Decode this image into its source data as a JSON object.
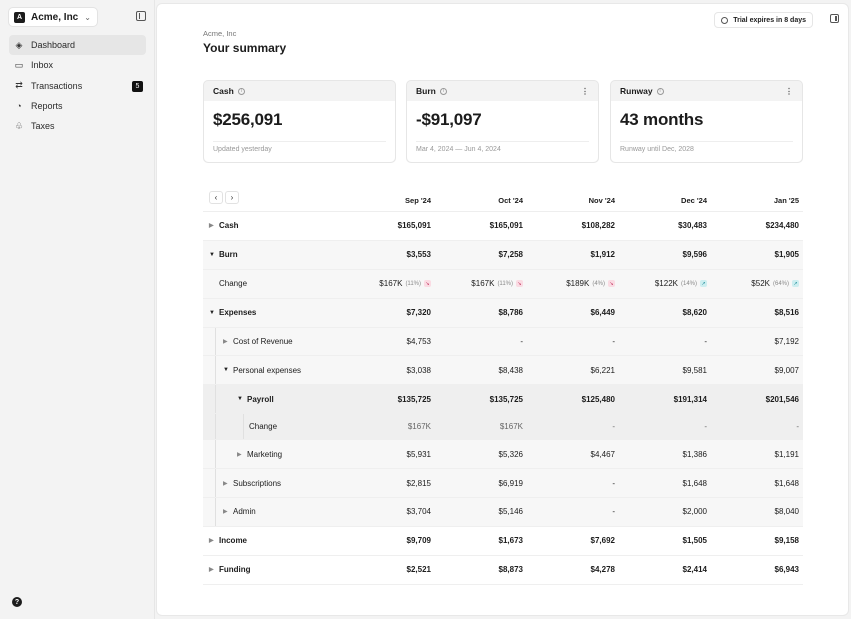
{
  "org": {
    "logo": "A",
    "name": "Acme, Inc"
  },
  "nav": [
    {
      "label": "Dashboard",
      "icon": "◈",
      "active": true
    },
    {
      "label": "Inbox",
      "icon": "▭"
    },
    {
      "label": "Transactions",
      "icon": "⇄",
      "badge": "5"
    },
    {
      "label": "Reports",
      "icon": "◔"
    },
    {
      "label": "Taxes",
      "icon": "♧"
    }
  ],
  "help": "?",
  "header": {
    "trial": "Trial expires in 8 days",
    "breadcrumb": "Acme, Inc",
    "title": "Your summary"
  },
  "cards": [
    {
      "label": "Cash",
      "value": "$256,091",
      "foot": "Updated yesterday",
      "menu": false
    },
    {
      "label": "Burn",
      "value": "-$91,097",
      "foot": "Mar 4, 2024 — Jun 4, 2024",
      "menu": true
    },
    {
      "label": "Runway",
      "value": "43 months",
      "foot": "Runway until Dec, 2028",
      "menu": true
    }
  ],
  "table": {
    "pager": {
      "prev": "‹",
      "next": "›"
    },
    "columns": [
      "Sep '24",
      "Oct '24",
      "Nov '24",
      "Dec '24",
      "Jan '25"
    ],
    "rows": [
      {
        "label": "Cash",
        "level": 0,
        "caret": "right",
        "bold": true,
        "values": [
          "$165,091",
          "$165,091",
          "$108,282",
          "$30,483",
          "$234,480"
        ]
      },
      {
        "label": "Burn",
        "level": 0,
        "caret": "down",
        "bold": true,
        "bg": 1,
        "values": [
          "$3,553",
          "$7,258",
          "$1,912",
          "$9,596",
          "$1,905"
        ]
      },
      {
        "label": "Change",
        "level": 0,
        "caret": "none",
        "bg": 1,
        "change": true,
        "values": [
          "$167K",
          "$167K",
          "$189K",
          "$122K",
          "$52K"
        ],
        "pct": [
          "(11%)",
          "(11%)",
          "(4%)",
          "(14%)",
          "(64%)"
        ],
        "trend": [
          "up",
          "up",
          "up",
          "down",
          "down"
        ]
      },
      {
        "label": "Expenses",
        "level": 0,
        "caret": "down",
        "bold": true,
        "bg": 1,
        "values": [
          "$7,320",
          "$8,786",
          "$6,449",
          "$8,620",
          "$8,516"
        ]
      },
      {
        "label": "Cost of Revenue",
        "level": 1,
        "caret": "right",
        "bg": 1,
        "values": [
          "$4,753",
          "-",
          "-",
          "-",
          "$7,192"
        ]
      },
      {
        "label": "Personal expenses",
        "level": 1,
        "caret": "down",
        "bg": 1,
        "values": [
          "$3,038",
          "$8,438",
          "$6,221",
          "$9,581",
          "$9,007"
        ]
      },
      {
        "label": "Payroll",
        "level": 2,
        "caret": "down",
        "bold": true,
        "bg": 2,
        "values": [
          "$135,725",
          "$135,725",
          "$125,480",
          "$191,314",
          "$201,546"
        ]
      },
      {
        "label": "Change",
        "level": 3,
        "caret": "none",
        "bg": 2,
        "muted": true,
        "short": true,
        "values": [
          "$167K",
          "$167K",
          "-",
          "-",
          "-"
        ]
      },
      {
        "label": "Marketing",
        "level": 2,
        "caret": "right",
        "bg": 1,
        "values": [
          "$5,931",
          "$5,326",
          "$4,467",
          "$1,386",
          "$1,191"
        ]
      },
      {
        "label": "Subscriptions",
        "level": 1,
        "caret": "right",
        "bg": 1,
        "values": [
          "$2,815",
          "$6,919",
          "-",
          "$1,648",
          "$1,648"
        ]
      },
      {
        "label": "Admin",
        "level": 1,
        "caret": "right",
        "bg": 1,
        "values": [
          "$3,704",
          "$5,146",
          "-",
          "$2,000",
          "$8,040"
        ]
      },
      {
        "label": "Income",
        "level": 0,
        "caret": "right",
        "bold": true,
        "values": [
          "$9,709",
          "$1,673",
          "$7,692",
          "$1,505",
          "$9,158"
        ]
      },
      {
        "label": "Funding",
        "level": 0,
        "caret": "right",
        "bold": true,
        "values": [
          "$2,521",
          "$8,873",
          "$4,278",
          "$2,414",
          "$6,943"
        ]
      }
    ]
  }
}
